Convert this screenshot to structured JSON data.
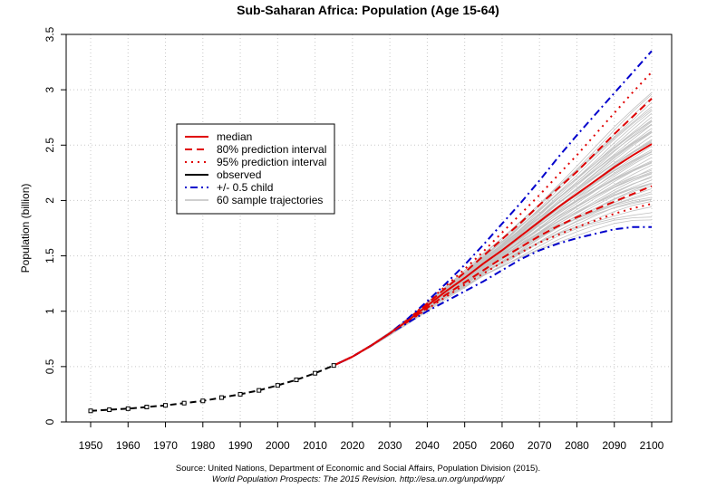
{
  "chart_data": {
    "type": "line",
    "title": "Sub-Saharan Africa: Population (Age 15-64)",
    "xlabel": "",
    "ylabel": "Population (billion)",
    "xlim": [
      1950,
      2100
    ],
    "ylim": [
      0,
      3.5
    ],
    "x_ticks": [
      1950,
      1960,
      1970,
      1980,
      1990,
      2000,
      2010,
      2020,
      2030,
      2040,
      2050,
      2060,
      2070,
      2080,
      2090,
      2100
    ],
    "y_ticks": [
      0,
      0.5,
      1,
      1.5,
      2,
      2.5,
      3,
      3.5
    ],
    "grid": true,
    "legend_position": "top-left",
    "legend": [
      {
        "label": "median",
        "color": "#e00000",
        "style": "solid"
      },
      {
        "label": "80% prediction interval",
        "color": "#e00000",
        "style": "dashed"
      },
      {
        "label": "95% prediction interval",
        "color": "#e00000",
        "style": "dotted"
      },
      {
        "label": "observed",
        "color": "#000000",
        "style": "solid"
      },
      {
        "label": "+/- 0.5 child",
        "color": "#0000cc",
        "style": "dotdash"
      },
      {
        "label": "60 sample trajectories",
        "color": "#bfbfbf",
        "style": "solid"
      }
    ],
    "observed": {
      "name": "observed",
      "x": [
        1950,
        1955,
        1960,
        1965,
        1970,
        1975,
        1980,
        1985,
        1990,
        1995,
        2000,
        2005,
        2010,
        2015
      ],
      "y": [
        0.1,
        0.11,
        0.12,
        0.135,
        0.15,
        0.17,
        0.19,
        0.22,
        0.25,
        0.285,
        0.33,
        0.38,
        0.44,
        0.51
      ]
    },
    "projection_x": [
      2015,
      2020,
      2025,
      2030,
      2035,
      2040,
      2045,
      2050,
      2055,
      2060,
      2065,
      2070,
      2075,
      2080,
      2085,
      2090,
      2095,
      2100
    ],
    "series": [
      {
        "name": "median",
        "values": [
          0.51,
          0.59,
          0.69,
          0.8,
          0.92,
          1.05,
          1.18,
          1.3,
          1.43,
          1.55,
          1.68,
          1.81,
          1.94,
          2.06,
          2.18,
          2.3,
          2.41,
          2.51
        ]
      },
      {
        "name": "80% upper",
        "values": [
          0.51,
          0.59,
          0.69,
          0.8,
          0.93,
          1.07,
          1.21,
          1.35,
          1.5,
          1.65,
          1.8,
          1.96,
          2.11,
          2.26,
          2.43,
          2.6,
          2.76,
          2.92
        ]
      },
      {
        "name": "80% lower",
        "values": [
          0.51,
          0.59,
          0.69,
          0.8,
          0.91,
          1.03,
          1.15,
          1.26,
          1.37,
          1.48,
          1.58,
          1.68,
          1.77,
          1.85,
          1.92,
          1.99,
          2.06,
          2.13
        ]
      },
      {
        "name": "95% upper",
        "values": [
          0.51,
          0.59,
          0.69,
          0.8,
          0.93,
          1.08,
          1.23,
          1.38,
          1.54,
          1.71,
          1.88,
          2.05,
          2.23,
          2.41,
          2.6,
          2.79,
          2.98,
          3.16
        ]
      },
      {
        "name": "95% lower",
        "values": [
          0.51,
          0.59,
          0.69,
          0.8,
          0.91,
          1.02,
          1.13,
          1.24,
          1.34,
          1.44,
          1.53,
          1.62,
          1.69,
          1.76,
          1.82,
          1.88,
          1.93,
          1.97
        ]
      },
      {
        "name": "+0.5 child",
        "values": [
          0.51,
          0.59,
          0.69,
          0.8,
          0.94,
          1.09,
          1.25,
          1.42,
          1.6,
          1.79,
          1.98,
          2.18,
          2.39,
          2.59,
          2.78,
          2.97,
          3.16,
          3.35
        ]
      },
      {
        "name": "-0.5 child",
        "values": [
          0.51,
          0.59,
          0.69,
          0.8,
          0.9,
          1.0,
          1.09,
          1.18,
          1.27,
          1.37,
          1.47,
          1.55,
          1.61,
          1.66,
          1.7,
          1.74,
          1.76,
          1.76
        ]
      }
    ],
    "sample_trajectories_final": [
      1.82,
      1.86,
      1.9,
      1.94,
      1.98,
      2.01,
      2.04,
      2.07,
      2.1,
      2.12,
      2.15,
      2.17,
      2.19,
      2.21,
      2.23,
      2.25,
      2.27,
      2.29,
      2.31,
      2.33,
      2.35,
      2.37,
      2.39,
      2.41,
      2.43,
      2.45,
      2.47,
      2.49,
      2.5,
      2.52,
      2.54,
      2.56,
      2.58,
      2.6,
      2.62,
      2.64,
      2.66,
      2.68,
      2.7,
      2.72,
      2.74,
      2.76,
      2.78,
      2.8,
      2.83,
      2.86,
      2.89,
      2.92,
      2.95,
      2.98,
      2.02,
      2.08,
      2.14,
      2.2,
      2.28,
      2.36,
      2.44,
      2.53,
      2.61,
      2.7
    ]
  },
  "source": {
    "line1": "Source: United Nations, Department of Economic and Social Affairs, Population Division (2015).",
    "line2": "World Population Prospects: The 2015 Revision. http://esa.un.org/unpd/wpp/"
  }
}
